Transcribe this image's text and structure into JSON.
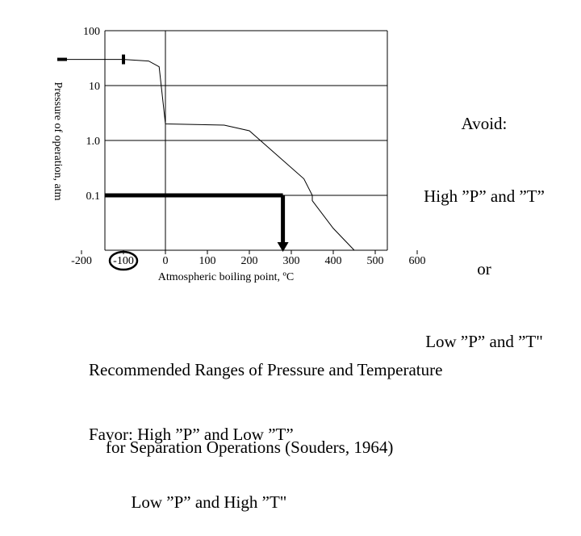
{
  "chart_data": {
    "type": "line",
    "title": "",
    "xlabel": "Atmospheric boiling point, ºC",
    "ylabel": "Pressure of operation, atm",
    "y_scale": "log",
    "y_ticks": [
      {
        "value": 100,
        "label": "100"
      },
      {
        "value": 10,
        "label": "10"
      },
      {
        "value": 1,
        "label": "1.0"
      },
      {
        "value": 0.1,
        "label": "0.1"
      }
    ],
    "x_ticks": [
      {
        "value": -200,
        "label": "-200"
      },
      {
        "value": -100,
        "label": "-100"
      },
      {
        "value": 0,
        "label": "0"
      },
      {
        "value": 100,
        "label": "100"
      },
      {
        "value": 200,
        "label": "200"
      },
      {
        "value": 300,
        "label": "300"
      },
      {
        "value": 400,
        "label": "400"
      },
      {
        "value": 500,
        "label": "500"
      },
      {
        "value": 600,
        "label": "600"
      }
    ],
    "xlim": [
      -250,
      640
    ],
    "ylim": [
      0.01,
      100
    ],
    "grid": "major",
    "series": [
      {
        "x": [
          -250,
          -100,
          -40,
          -15,
          0,
          140,
          200,
          330,
          350,
          350,
          400,
          450
        ],
        "y": [
          30,
          30,
          28,
          22,
          2,
          1.9,
          1.5,
          0.2,
          0.1,
          0.08,
          0.025,
          0.01
        ]
      }
    ],
    "reference_point": {
      "x": 280,
      "y": 0.1
    },
    "highlight_tick": -100,
    "colors": {
      "curve": "#000000",
      "reference": "#000000"
    }
  },
  "annotations": {
    "avoid_lines": [
      "Avoid:",
      "High ”P” and ”T”",
      "or",
      "Low ”P” and ”T\""
    ],
    "caption_lines": [
      "Recommended Ranges of Pressure and Temperature",
      "    for Separation Operations (Souders, 1964)"
    ],
    "favor_lines": [
      "Favor: High ”P” and Low ”T”",
      "          Low ”P” and High ”T\""
    ]
  }
}
